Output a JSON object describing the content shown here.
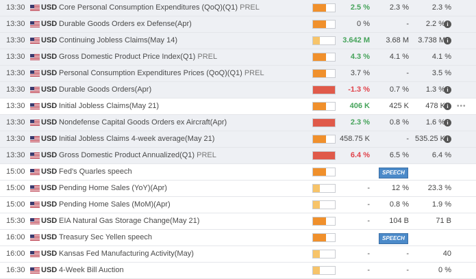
{
  "colors": {
    "imp_high": "#f0902c",
    "imp_low": "#f7c46a",
    "imp_red": "#e05a4a",
    "actual_up": "#45a35a",
    "actual_down": "#e0424a",
    "speech_bg": "#4b8ac9"
  },
  "rows": [
    {
      "time": "13:30",
      "currency": "USD",
      "event": "Core Personal Consumption Expenditures (QoQ)(Q1)",
      "tag": "PREL",
      "impact_fraction": 0.6,
      "impact_color": "#f0902c",
      "actual": "2.5 %",
      "actual_dir": "up",
      "consensus": "2.3 %",
      "previous": "2.3 %",
      "info": false,
      "past": true
    },
    {
      "time": "13:30",
      "currency": "USD",
      "event": "Durable Goods Orders ex Defense(Apr)",
      "tag": "",
      "impact_fraction": 0.6,
      "impact_color": "#f0902c",
      "actual": "0 %",
      "actual_dir": "neutral",
      "consensus": "-",
      "previous": "2.2 %",
      "info": true,
      "past": true
    },
    {
      "time": "13:30",
      "currency": "USD",
      "event": "Continuing Jobless Claims(May 14)",
      "tag": "",
      "impact_fraction": 0.3,
      "impact_color": "#f7c46a",
      "actual": "3.642 M",
      "actual_dir": "up",
      "consensus": "3.68 M",
      "previous": "3.738 M",
      "info": true,
      "past": true
    },
    {
      "time": "13:30",
      "currency": "USD",
      "event": "Gross Domestic Product Price Index(Q1)",
      "tag": "PREL",
      "impact_fraction": 0.6,
      "impact_color": "#f0902c",
      "actual": "4.3 %",
      "actual_dir": "up",
      "consensus": "4.1 %",
      "previous": "4.1 %",
      "info": false,
      "past": true
    },
    {
      "time": "13:30",
      "currency": "USD",
      "event": "Personal Consumption Expenditures Prices (QoQ)(Q1)",
      "tag": "PREL",
      "impact_fraction": 0.6,
      "impact_color": "#f0902c",
      "actual": "3.7 %",
      "actual_dir": "neutral",
      "consensus": "-",
      "previous": "3.5 %",
      "info": false,
      "past": true
    },
    {
      "time": "13:30",
      "currency": "USD",
      "event": "Durable Goods Orders(Apr)",
      "tag": "",
      "impact_fraction": 1.0,
      "impact_color": "#e05a4a",
      "actual": "-1.3 %",
      "actual_dir": "down",
      "consensus": "0.7 %",
      "previous": "1.3 %",
      "info": true,
      "past": true
    },
    {
      "time": "13:30",
      "currency": "USD",
      "event": "Initial Jobless Claims(May 21)",
      "tag": "",
      "impact_fraction": 0.6,
      "impact_color": "#f0902c",
      "actual": "406 K",
      "actual_dir": "up",
      "consensus": "425 K",
      "previous": "478 K",
      "info": true,
      "past": false,
      "highlight": true,
      "more": "•••"
    },
    {
      "time": "13:30",
      "currency": "USD",
      "event": "Nondefense Capital Goods Orders ex Aircraft(Apr)",
      "tag": "",
      "impact_fraction": 1.0,
      "impact_color": "#e05a4a",
      "actual": "2.3 %",
      "actual_dir": "up",
      "consensus": "0.8 %",
      "previous": "1.6 %",
      "info": true,
      "past": true
    },
    {
      "time": "13:30",
      "currency": "USD",
      "event": "Initial Jobless Claims 4-week average(May 21)",
      "tag": "",
      "impact_fraction": 0.6,
      "impact_color": "#f0902c",
      "actual": "458.75 K",
      "actual_dir": "neutral",
      "consensus": "-",
      "previous": "535.25 K",
      "info": true,
      "past": true
    },
    {
      "time": "13:30",
      "currency": "USD",
      "event": "Gross Domestic Product Annualized(Q1)",
      "tag": "PREL",
      "impact_fraction": 1.0,
      "impact_color": "#e05a4a",
      "actual": "6.4 %",
      "actual_dir": "down",
      "consensus": "6.5 %",
      "previous": "6.4 %",
      "info": false,
      "past": true
    },
    {
      "time": "15:00",
      "currency": "USD",
      "event": "Fed's Quarles speech",
      "tag": "",
      "impact_fraction": 0.6,
      "impact_color": "#f0902c",
      "actual": "",
      "actual_dir": "neutral",
      "consensus": "",
      "previous": "",
      "info": false,
      "past": false,
      "speech": "SPEECH"
    },
    {
      "time": "15:00",
      "currency": "USD",
      "event": "Pending Home Sales (YoY)(Apr)",
      "tag": "",
      "impact_fraction": 0.3,
      "impact_color": "#f7c46a",
      "actual": "-",
      "actual_dir": "neutral",
      "consensus": "12 %",
      "previous": "23.3 %",
      "info": false,
      "past": false
    },
    {
      "time": "15:00",
      "currency": "USD",
      "event": "Pending Home Sales (MoM)(Apr)",
      "tag": "",
      "impact_fraction": 0.3,
      "impact_color": "#f7c46a",
      "actual": "-",
      "actual_dir": "neutral",
      "consensus": "0.8 %",
      "previous": "1.9 %",
      "info": false,
      "past": false
    },
    {
      "time": "15:30",
      "currency": "USD",
      "event": "EIA Natural Gas Storage Change(May 21)",
      "tag": "",
      "impact_fraction": 0.6,
      "impact_color": "#f0902c",
      "actual": "-",
      "actual_dir": "neutral",
      "consensus": "104 B",
      "previous": "71 B",
      "info": false,
      "past": false
    },
    {
      "time": "16:00",
      "currency": "USD",
      "event": "Treasury Sec Yellen speech",
      "tag": "",
      "impact_fraction": 0.6,
      "impact_color": "#f0902c",
      "actual": "",
      "actual_dir": "neutral",
      "consensus": "",
      "previous": "",
      "info": false,
      "past": false,
      "speech": "SPEECH"
    },
    {
      "time": "16:00",
      "currency": "USD",
      "event": "Kansas Fed Manufacturing Activity(May)",
      "tag": "",
      "impact_fraction": 0.3,
      "impact_color": "#f7c46a",
      "actual": "-",
      "actual_dir": "neutral",
      "consensus": "-",
      "previous": "40",
      "info": false,
      "past": false
    },
    {
      "time": "16:30",
      "currency": "USD",
      "event": "4-Week Bill Auction",
      "tag": "",
      "impact_fraction": 0.3,
      "impact_color": "#f7c46a",
      "actual": "-",
      "actual_dir": "neutral",
      "consensus": "-",
      "previous": "0 %",
      "info": false,
      "past": false
    }
  ]
}
